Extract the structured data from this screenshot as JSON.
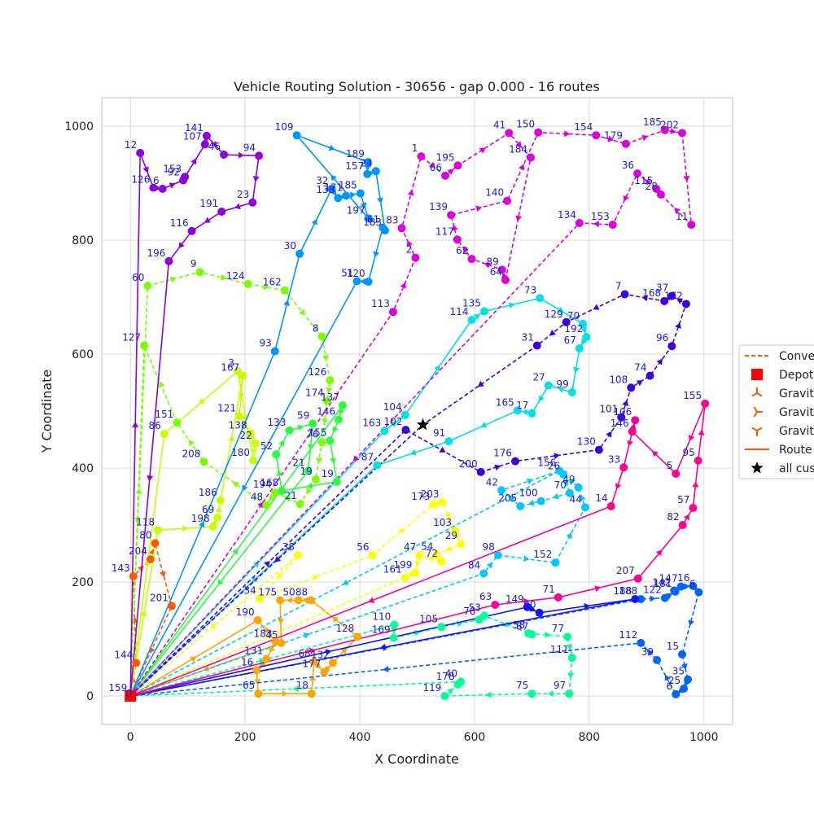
{
  "chart_data": {
    "type": "scatter",
    "title": "Vehicle Routing Solution - 30656 - gap 0.000 - 16 routes",
    "xlabel": "X Coordinate",
    "ylabel": "Y Coordinate",
    "xlim": [
      -50,
      1050
    ],
    "ylim": [
      -50,
      1050
    ],
    "xticks": [
      0,
      200,
      400,
      600,
      800,
      1000
    ],
    "yticks": [
      0,
      200,
      400,
      600,
      800,
      1000
    ],
    "grid": true,
    "legend_position": "right",
    "legend": [
      "Conve",
      "Depot",
      "Gravit",
      "Gravit",
      "Gravit",
      "Route",
      "all cus"
    ],
    "depot": {
      "x": 0,
      "y": 0
    },
    "star": {
      "x": 510,
      "y": 476
    },
    "routes": [
      {
        "color": "#ff5a00",
        "stops": [
          [
            0,
            0,
            "159"
          ],
          [
            10,
            58,
            "144"
          ],
          [
            5,
            210,
            "143"
          ],
          [
            35,
            240,
            "204"
          ],
          [
            43,
            268,
            "80"
          ],
          [
            72,
            158,
            "201"
          ],
          [
            0,
            0,
            "0"
          ]
        ]
      },
      {
        "color": "#ffa500",
        "stops": [
          [
            0,
            0,
            "159"
          ],
          [
            222,
            133,
            "190"
          ],
          [
            253,
            95,
            "183"
          ],
          [
            237,
            65,
            "131"
          ],
          [
            220,
            45,
            "16"
          ],
          [
            223,
            4,
            "65"
          ],
          [
            316,
            4,
            "18"
          ],
          [
            320,
            60,
            "68"
          ],
          [
            338,
            42,
            "177"
          ],
          [
            353,
            58,
            "132"
          ],
          [
            396,
            104,
            "128"
          ],
          [
            315,
            168,
            "88"
          ],
          [
            293,
            168,
            "50"
          ],
          [
            261,
            168,
            "175"
          ],
          [
            263,
            93,
            "45"
          ],
          [
            0,
            0,
            "0"
          ]
        ]
      },
      {
        "color": "#ffff00",
        "stops": [
          [
            0,
            0,
            "159"
          ],
          [
            292,
            247,
            "38"
          ],
          [
            225,
            171,
            "34"
          ],
          [
            422,
            247,
            "56"
          ],
          [
            528,
            336,
            "173"
          ],
          [
            544,
            340,
            "203"
          ],
          [
            566,
            290,
            "103"
          ],
          [
            576,
            267,
            "29"
          ],
          [
            534,
            248,
            "54"
          ],
          [
            542,
            236,
            "72"
          ],
          [
            504,
            247,
            "47"
          ],
          [
            497,
            216,
            "199"
          ],
          [
            479,
            208,
            "161"
          ],
          [
            0,
            0,
            "0"
          ]
        ]
      },
      {
        "color": "#c8ff00",
        "stops": [
          [
            0,
            0,
            "159"
          ],
          [
            48,
            291,
            "118"
          ],
          [
            144,
            297,
            "198"
          ],
          [
            152,
            313,
            "69"
          ],
          [
            157,
            343,
            "186"
          ],
          [
            196,
            562,
            "167"
          ],
          [
            190,
            491,
            "121"
          ],
          [
            209,
            461,
            "138"
          ],
          [
            218,
            443,
            "22"
          ],
          [
            214,
            413,
            "180"
          ],
          [
            187,
            570,
            "3"
          ],
          [
            59,
            460,
            "86"
          ],
          [
            0,
            0,
            "0"
          ]
        ]
      },
      {
        "color": "#78ff00",
        "stops": [
          [
            0,
            0,
            "159"
          ],
          [
            30,
            720,
            "60"
          ],
          [
            121,
            744,
            "9"
          ],
          [
            205,
            723,
            "124"
          ],
          [
            269,
            712,
            "162"
          ],
          [
            334,
            631,
            "8"
          ],
          [
            348,
            554,
            "126"
          ],
          [
            343,
            518,
            "174"
          ],
          [
            334,
            445,
            "76"
          ],
          [
            323,
            380,
            "19"
          ],
          [
            296,
            337,
            "21"
          ],
          [
            252,
            357,
            "194"
          ],
          [
            237,
            335,
            "48"
          ],
          [
            128,
            411,
            "208"
          ],
          [
            81,
            480,
            "151"
          ],
          [
            24,
            615,
            "127"
          ],
          [
            0,
            0,
            "0"
          ]
        ]
      },
      {
        "color": "#28ff3c",
        "stops": [
          [
            0,
            0,
            "159"
          ],
          [
            370,
            510,
            "137"
          ],
          [
            363,
            485,
            "146"
          ],
          [
            348,
            448,
            "155"
          ],
          [
            360,
            376,
            "19"
          ],
          [
            264,
            360,
            "168"
          ],
          [
            254,
            424,
            "52"
          ],
          [
            277,
            466,
            "133"
          ],
          [
            318,
            478,
            "59"
          ],
          [
            310,
            395,
            "21"
          ],
          [
            0,
            0,
            "0"
          ]
        ]
      },
      {
        "color": "#00ff96",
        "stops": [
          [
            0,
            0,
            "159"
          ],
          [
            460,
            125,
            "110"
          ],
          [
            459,
            102,
            "169"
          ],
          [
            542,
            121,
            "105"
          ],
          [
            608,
            134,
            "78"
          ],
          [
            617,
            141,
            "53"
          ],
          [
            700,
            108,
            "87"
          ],
          [
            694,
            110,
            "58"
          ],
          [
            762,
            104,
            "77"
          ],
          [
            770,
            67,
            "111"
          ],
          [
            765,
            4,
            "97"
          ],
          [
            700,
            4,
            "75"
          ],
          [
            548,
            0,
            "119"
          ],
          [
            571,
            20,
            "178"
          ],
          [
            576,
            25,
            "40"
          ],
          [
            0,
            0,
            "0"
          ]
        ]
      },
      {
        "color": "#00e1e6",
        "stops": [
          [
            0,
            0,
            "159"
          ],
          [
            443,
            465,
            "163"
          ],
          [
            479,
            493,
            "104"
          ],
          [
            595,
            660,
            "114"
          ],
          [
            617,
            675,
            "135"
          ],
          [
            714,
            698,
            "73"
          ],
          [
            789,
            653,
            "70"
          ],
          [
            795,
            630,
            "192"
          ],
          [
            783,
            610,
            "67"
          ],
          [
            770,
            533,
            "99"
          ],
          [
            729,
            545,
            "27"
          ],
          [
            700,
            496,
            "17"
          ],
          [
            675,
            501,
            "165"
          ],
          [
            555,
            447,
            "91"
          ],
          [
            430,
            405,
            "87"
          ],
          [
            0,
            0,
            "0"
          ]
        ]
      },
      {
        "color": "#00c8ff",
        "stops": [
          [
            0,
            0,
            "159"
          ],
          [
            616,
            215,
            "84"
          ],
          [
            641,
            247,
            "98"
          ],
          [
            741,
            234,
            "152"
          ],
          [
            793,
            331,
            "44"
          ],
          [
            781,
            366,
            "49"
          ],
          [
            755,
            389,
            "26"
          ],
          [
            766,
            356,
            "70"
          ],
          [
            716,
            342,
            "100"
          ],
          [
            680,
            333,
            "205"
          ],
          [
            647,
            361,
            "42"
          ],
          [
            748,
            395,
            "156"
          ],
          [
            0,
            0,
            "0"
          ]
        ]
      },
      {
        "color": "#0096ff",
        "stops": [
          [
            0,
            0,
            "159"
          ],
          [
            252,
            605,
            "93"
          ],
          [
            295,
            776,
            "30"
          ],
          [
            351,
            890,
            "32"
          ],
          [
            362,
            874,
            "138"
          ],
          [
            376,
            878,
            "171"
          ],
          [
            401,
            882,
            "185"
          ],
          [
            415,
            838,
            "197"
          ],
          [
            290,
            984,
            "109"
          ],
          [
            414,
            937,
            "189"
          ],
          [
            413,
            916,
            "157"
          ],
          [
            428,
            921,
            "24"
          ],
          [
            444,
            817,
            "183"
          ],
          [
            440,
            822,
            "61"
          ],
          [
            415,
            727,
            "120"
          ],
          [
            395,
            728,
            "51"
          ],
          [
            0,
            0,
            "0"
          ]
        ]
      },
      {
        "color": "#0064ff",
        "stops": [
          [
            0,
            0,
            "159"
          ],
          [
            890,
            170,
            "188"
          ],
          [
            932,
            172,
            "122"
          ],
          [
            950,
            183,
            "181"
          ],
          [
            948,
            185,
            "142"
          ],
          [
            960,
            192,
            "147"
          ],
          [
            981,
            193,
            "16"
          ],
          [
            991,
            182,
            "6"
          ],
          [
            962,
            73,
            "15"
          ],
          [
            972,
            29,
            "35"
          ],
          [
            965,
            13,
            "25"
          ],
          [
            951,
            3,
            "6"
          ],
          [
            918,
            63,
            "39"
          ],
          [
            890,
            93,
            "112"
          ],
          [
            0,
            0,
            "0"
          ]
        ]
      },
      {
        "color": "#1414ff",
        "stops": [
          [
            0,
            0,
            "159"
          ],
          [
            692,
            156,
            "149"
          ],
          [
            713,
            146,
            "20"
          ],
          [
            880,
            170,
            "188"
          ],
          [
            0,
            0,
            "0"
          ]
        ]
      },
      {
        "color": "#3c00dc",
        "stops": [
          [
            0,
            0,
            "159"
          ],
          [
            480,
            467,
            "102"
          ],
          [
            611,
            393,
            "200"
          ],
          [
            671,
            412,
            "176"
          ],
          [
            817,
            432,
            "130"
          ],
          [
            856,
            489,
            "101"
          ],
          [
            873,
            541,
            "108"
          ],
          [
            906,
            562,
            "74"
          ],
          [
            944,
            614,
            "96"
          ],
          [
            969,
            688,
            "172"
          ],
          [
            944,
            702,
            "37"
          ],
          [
            931,
            693,
            "168"
          ],
          [
            862,
            705,
            "7"
          ],
          [
            760,
            656,
            "129"
          ],
          [
            709,
            615,
            "31"
          ],
          [
            510,
            476,
            "star"
          ],
          [
            0,
            0,
            "0"
          ]
        ]
      },
      {
        "color": "#8c00dc",
        "stops": [
          [
            0,
            0,
            "159"
          ],
          [
            17,
            953,
            "12"
          ],
          [
            40,
            892,
            "126"
          ],
          [
            56,
            890,
            "6"
          ],
          [
            92,
            905,
            "92"
          ],
          [
            95,
            911,
            "153"
          ],
          [
            130,
            968,
            "107"
          ],
          [
            133,
            983,
            "141"
          ],
          [
            163,
            950,
            "46"
          ],
          [
            224,
            948,
            "94"
          ],
          [
            213,
            866,
            "23"
          ],
          [
            159,
            850,
            "191"
          ],
          [
            107,
            816,
            "116"
          ],
          [
            67,
            763,
            "196"
          ],
          [
            0,
            0,
            "0"
          ]
        ]
      },
      {
        "color": "#dc00dc",
        "stops": [
          [
            0,
            0,
            "159"
          ],
          [
            458,
            674,
            "113"
          ],
          [
            497,
            769,
            "2"
          ],
          [
            473,
            821,
            "83"
          ],
          [
            507,
            947,
            "1"
          ],
          [
            549,
            913,
            "66"
          ],
          [
            571,
            931,
            "195"
          ],
          [
            660,
            988,
            "41"
          ],
          [
            698,
            945,
            "184"
          ],
          [
            654,
            730,
            "64"
          ],
          [
            648,
            748,
            "89"
          ],
          [
            595,
            767,
            "62"
          ],
          [
            570,
            801,
            "117"
          ],
          [
            559,
            844,
            "139"
          ],
          [
            657,
            869,
            "140"
          ],
          [
            711,
            989,
            "150"
          ],
          [
            812,
            984,
            "154"
          ],
          [
            864,
            969,
            "179"
          ],
          [
            932,
            993,
            "185"
          ],
          [
            962,
            988,
            "202"
          ],
          [
            978,
            827,
            "11"
          ],
          [
            925,
            880,
            "28"
          ],
          [
            917,
            890,
            "115"
          ],
          [
            884,
            917,
            "36"
          ],
          [
            841,
            827,
            "153"
          ],
          [
            783,
            830,
            "134"
          ],
          [
            0,
            0,
            "0"
          ]
        ]
      },
      {
        "color": "#ff0096",
        "stops": [
          [
            0,
            0,
            "159"
          ],
          [
            636,
            160,
            "63"
          ],
          [
            746,
            173,
            "71"
          ],
          [
            885,
            206,
            "207"
          ],
          [
            963,
            300,
            "82"
          ],
          [
            981,
            330,
            "57"
          ],
          [
            990,
            413,
            "95"
          ],
          [
            1002,
            513,
            "155"
          ],
          [
            951,
            390,
            "5"
          ],
          [
            875,
            464,
            "146"
          ],
          [
            880,
            484,
            "106"
          ],
          [
            860,
            401,
            "33"
          ],
          [
            838,
            333,
            "14"
          ],
          [
            0,
            0,
            "0"
          ]
        ]
      }
    ]
  }
}
